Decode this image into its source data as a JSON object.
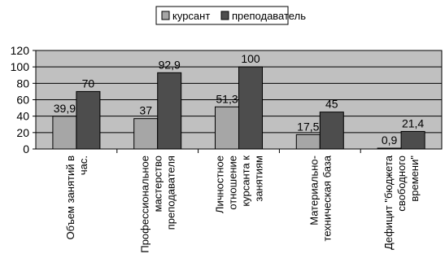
{
  "chart_data": {
    "type": "bar",
    "title": "",
    "xlabel": "",
    "ylabel": "",
    "ylim": [
      0,
      120
    ],
    "yticks": [
      0,
      20,
      40,
      60,
      80,
      100,
      120
    ],
    "grid": true,
    "legend_position": "top",
    "categories": [
      "Объем занятий в час.",
      "Профессиональное мастерство преподавателя",
      "Личностное отношение курсанта к занятиям",
      "Материально-техническая база",
      "Дефицит \"бюджета свободного времени\""
    ],
    "category_label_lines": [
      [
        "Объем занятий в",
        "час."
      ],
      [
        "Профессиональное",
        "мастерство",
        "преподавателя"
      ],
      [
        "Личностное",
        "отношение",
        "курсанта к",
        "занятиям"
      ],
      [
        "Материально-",
        "техническая база"
      ],
      [
        "Дефицит \"бюджета",
        "свободного",
        "времени\""
      ]
    ],
    "series": [
      {
        "name": "курсант",
        "values": [
          39.9,
          37,
          51.3,
          17.5,
          0.9
        ],
        "labels": [
          "39,9",
          "37",
          "51,3",
          "17,5",
          "0,9"
        ]
      },
      {
        "name": "преподаватель",
        "values": [
          70,
          92.9,
          100,
          45,
          21.4
        ],
        "labels": [
          "70",
          "92,9",
          "100",
          "45",
          "21,4"
        ]
      }
    ],
    "colors": {
      "series": [
        "#a6a6a6",
        "#4d4d4d"
      ],
      "plot_background": "#c0c0c0",
      "gridline": "#000000",
      "bar_stroke": "#000000"
    }
  }
}
